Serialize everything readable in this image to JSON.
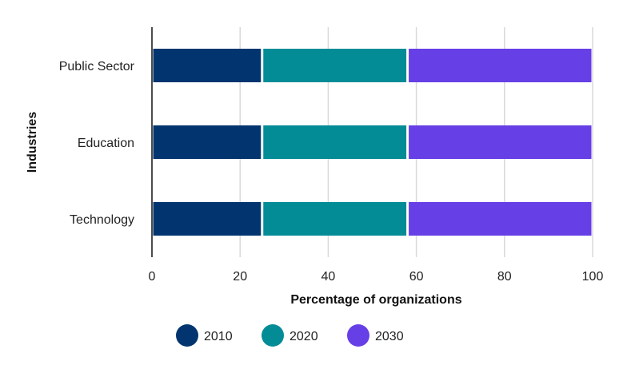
{
  "chart_data": {
    "type": "bar",
    "orientation": "horizontal",
    "stacked": true,
    "categories": [
      "Public Sector",
      "Education",
      "Technology"
    ],
    "series": [
      {
        "name": "2010",
        "values": [
          25,
          25,
          25
        ],
        "color": "#02356f"
      },
      {
        "name": "2020",
        "values": [
          33,
          33,
          33
        ],
        "color": "#048c96"
      },
      {
        "name": "2030",
        "values": [
          42,
          42,
          42
        ],
        "color": "#663fe6"
      }
    ],
    "xlabel": "Percentage of organizations",
    "ylabel": "Industries",
    "xlim": [
      0,
      100
    ],
    "xticks": [
      0,
      20,
      40,
      60,
      80,
      100
    ],
    "grid": true,
    "legend_position": "bottom"
  }
}
